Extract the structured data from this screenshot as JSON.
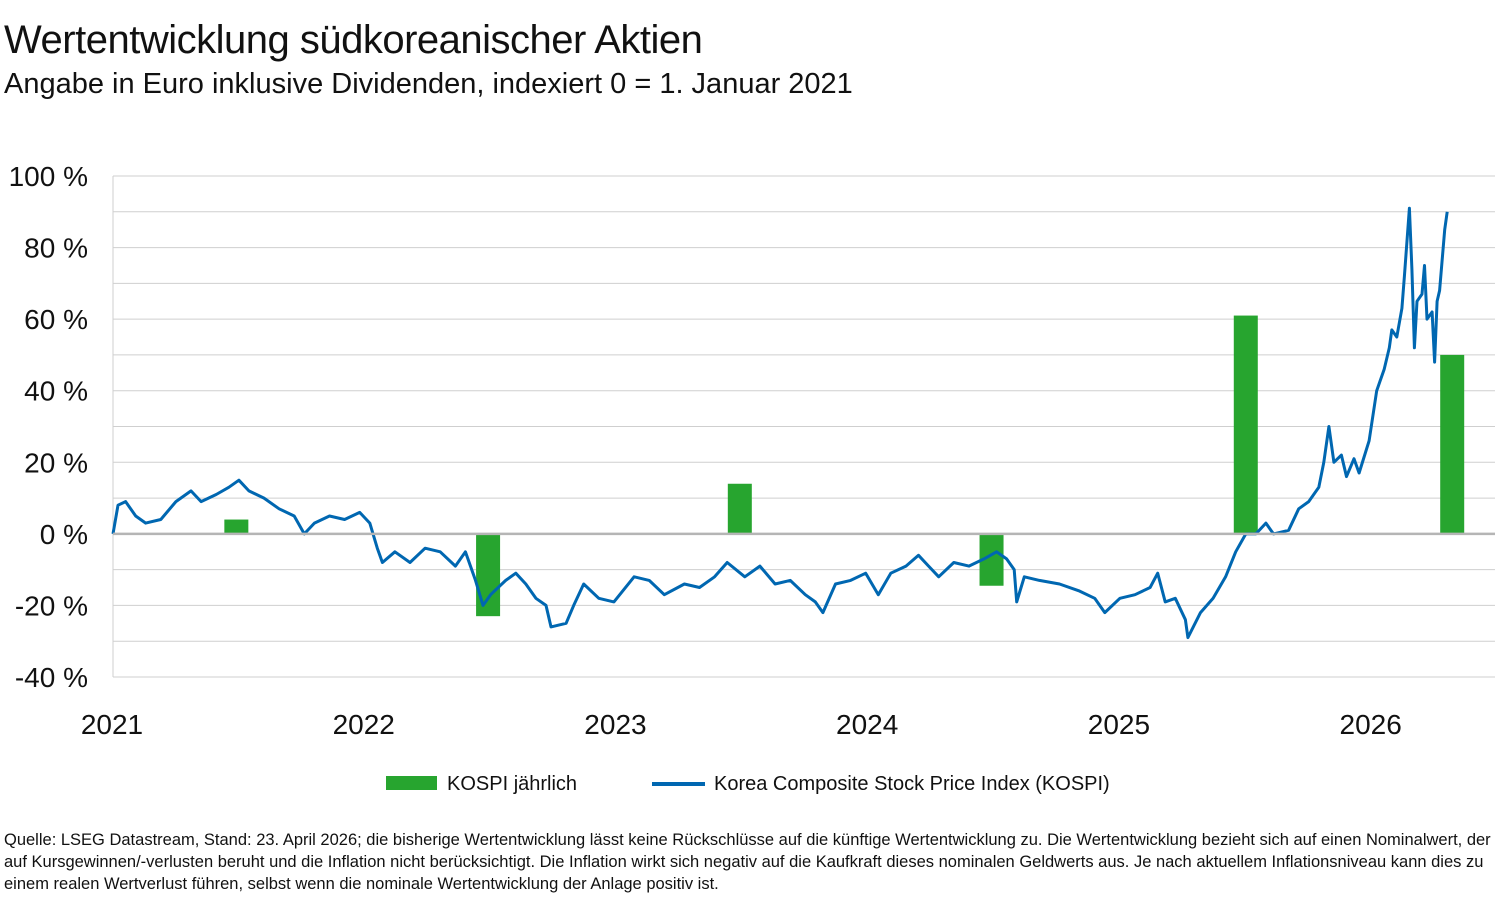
{
  "chart_data": {
    "type": "bar+line",
    "title": "Wertentwicklung südkoreanischer Aktien",
    "subtitle": "Angabe in Euro inklusive Dividenden, indexiert 0 = 1. Januar 2021",
    "xlabel": "",
    "ylabel": "",
    "ylim": [
      -40,
      100
    ],
    "yticks": [
      -40,
      -20,
      0,
      20,
      40,
      60,
      80,
      100
    ],
    "ytick_labels": [
      "-40 %",
      "-20 %",
      "0 %",
      "20 %",
      "40 %",
      "60 %",
      "80 %",
      "100 %"
    ],
    "xlim": [
      2021.0,
      2026.49
    ],
    "xticks": [
      2021,
      2022,
      2023,
      2024,
      2025,
      2026
    ],
    "xtick_labels": [
      "2021",
      "2022",
      "2023",
      "2024",
      "2025",
      "2026"
    ],
    "grid": true,
    "legend": "bottom",
    "series": [
      {
        "name": "KOSPI jährlich",
        "type": "bar",
        "color": "#27a52f",
        "categories": [
          "2021",
          "2022",
          "2023",
          "2024",
          "2025",
          "2026"
        ],
        "x": [
          2021.49,
          2022.49,
          2023.49,
          2024.49,
          2025.5,
          2026.32
        ],
        "values": [
          4,
          -23,
          14,
          -14.5,
          61,
          50
        ]
      },
      {
        "name": "Korea Composite Stock Price Index (KOSPI)",
        "type": "line",
        "color": "#0067b1",
        "points": [
          [
            2021.0,
            0
          ],
          [
            2021.02,
            8
          ],
          [
            2021.05,
            9
          ],
          [
            2021.09,
            5
          ],
          [
            2021.13,
            3
          ],
          [
            2021.19,
            4
          ],
          [
            2021.25,
            9
          ],
          [
            2021.31,
            12
          ],
          [
            2021.35,
            9
          ],
          [
            2021.41,
            11
          ],
          [
            2021.46,
            13
          ],
          [
            2021.5,
            15
          ],
          [
            2021.54,
            12
          ],
          [
            2021.6,
            10
          ],
          [
            2021.66,
            7
          ],
          [
            2021.72,
            5
          ],
          [
            2021.76,
            0
          ],
          [
            2021.8,
            3
          ],
          [
            2021.86,
            5
          ],
          [
            2021.92,
            4
          ],
          [
            2021.98,
            6
          ],
          [
            2022.02,
            3
          ],
          [
            2022.05,
            -4
          ],
          [
            2022.07,
            -8
          ],
          [
            2022.12,
            -5
          ],
          [
            2022.18,
            -8
          ],
          [
            2022.24,
            -4
          ],
          [
            2022.3,
            -5
          ],
          [
            2022.36,
            -9
          ],
          [
            2022.4,
            -5
          ],
          [
            2022.44,
            -13
          ],
          [
            2022.47,
            -20
          ],
          [
            2022.5,
            -17
          ],
          [
            2022.56,
            -13
          ],
          [
            2022.6,
            -11
          ],
          [
            2022.64,
            -14
          ],
          [
            2022.68,
            -18
          ],
          [
            2022.72,
            -20
          ],
          [
            2022.74,
            -26
          ],
          [
            2022.8,
            -25
          ],
          [
            2022.83,
            -20
          ],
          [
            2022.87,
            -14
          ],
          [
            2022.93,
            -18
          ],
          [
            2022.99,
            -19
          ],
          [
            2023.07,
            -12
          ],
          [
            2023.13,
            -13
          ],
          [
            2023.19,
            -17
          ],
          [
            2023.27,
            -14
          ],
          [
            2023.33,
            -15
          ],
          [
            2023.39,
            -12
          ],
          [
            2023.44,
            -8
          ],
          [
            2023.51,
            -12
          ],
          [
            2023.57,
            -9
          ],
          [
            2023.63,
            -14
          ],
          [
            2023.69,
            -13
          ],
          [
            2023.75,
            -17
          ],
          [
            2023.79,
            -19
          ],
          [
            2023.82,
            -22
          ],
          [
            2023.87,
            -14
          ],
          [
            2023.93,
            -13
          ],
          [
            2023.99,
            -11
          ],
          [
            2024.04,
            -17
          ],
          [
            2024.09,
            -11
          ],
          [
            2024.15,
            -9
          ],
          [
            2024.2,
            -6
          ],
          [
            2024.24,
            -9
          ],
          [
            2024.28,
            -12
          ],
          [
            2024.34,
            -8
          ],
          [
            2024.4,
            -9
          ],
          [
            2024.46,
            -7
          ],
          [
            2024.51,
            -5
          ],
          [
            2024.55,
            -7
          ],
          [
            2024.58,
            -10
          ],
          [
            2024.59,
            -19
          ],
          [
            2024.62,
            -12
          ],
          [
            2024.68,
            -13
          ],
          [
            2024.76,
            -14
          ],
          [
            2024.84,
            -16
          ],
          [
            2024.9,
            -18
          ],
          [
            2024.94,
            -22
          ],
          [
            2025.0,
            -18
          ],
          [
            2025.06,
            -17
          ],
          [
            2025.12,
            -15
          ],
          [
            2025.15,
            -11
          ],
          [
            2025.18,
            -19
          ],
          [
            2025.22,
            -18
          ],
          [
            2025.26,
            -24
          ],
          [
            2025.27,
            -29
          ],
          [
            2025.32,
            -22
          ],
          [
            2025.37,
            -18
          ],
          [
            2025.42,
            -12
          ],
          [
            2025.46,
            -5
          ],
          [
            2025.5,
            0
          ],
          [
            2025.54,
            0
          ],
          [
            2025.58,
            3
          ],
          [
            2025.61,
            0
          ],
          [
            2025.67,
            1
          ],
          [
            2025.71,
            7
          ],
          [
            2025.75,
            9
          ],
          [
            2025.79,
            13
          ],
          [
            2025.81,
            20
          ],
          [
            2025.83,
            30
          ],
          [
            2025.85,
            20
          ],
          [
            2025.88,
            22
          ],
          [
            2025.9,
            16
          ],
          [
            2025.93,
            21
          ],
          [
            2025.95,
            17
          ],
          [
            2025.99,
            26
          ],
          [
            2026.02,
            40
          ],
          [
            2026.05,
            46
          ],
          [
            2026.07,
            52
          ],
          [
            2026.08,
            57
          ],
          [
            2026.1,
            55
          ],
          [
            2026.12,
            63
          ],
          [
            2026.13,
            72
          ],
          [
            2026.15,
            91
          ],
          [
            2026.16,
            74
          ],
          [
            2026.17,
            52
          ],
          [
            2026.18,
            65
          ],
          [
            2026.2,
            67
          ],
          [
            2026.21,
            75
          ],
          [
            2026.22,
            60
          ],
          [
            2026.24,
            62
          ],
          [
            2026.25,
            48
          ],
          [
            2026.26,
            65
          ],
          [
            2026.27,
            68
          ],
          [
            2026.29,
            85
          ],
          [
            2026.3,
            90
          ]
        ]
      }
    ]
  },
  "footer": "Quelle: LSEG Datastream, Stand: 23. April 2026; die bisherige Wertentwicklung lässt keine Rückschlüsse auf die künftige Wertentwicklung zu. Die Wertentwicklung bezieht sich auf einen Nominalwert, der auf Kursgewinnen/-verlusten beruht und die Inflation nicht berücksichtigt. Die Inflation wirkt sich negativ auf die Kaufkraft dieses nominalen Geldwerts aus. Je nach aktuellem Inflationsniveau kann dies zu einem realen Wertverlust führen, selbst wenn die nominale Wertentwicklung der Anlage positiv ist."
}
